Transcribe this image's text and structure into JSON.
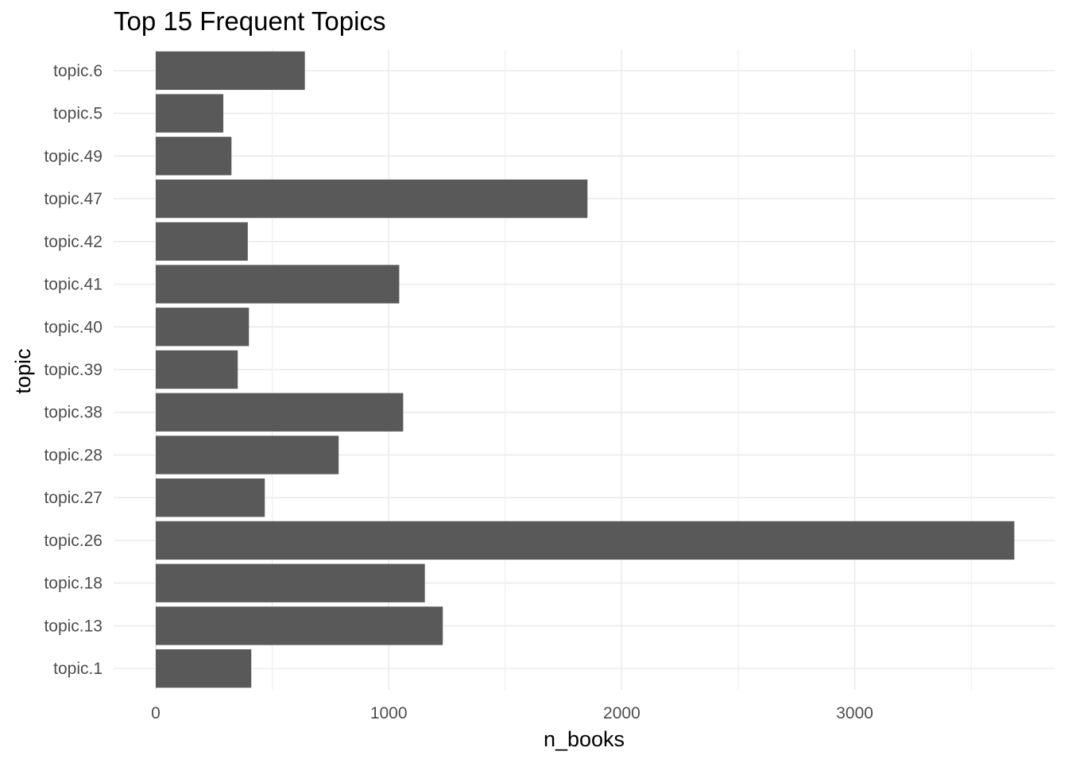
{
  "chart_data": {
    "type": "bar",
    "orientation": "horizontal",
    "title": "Top 15 Frequent Topics",
    "xlabel": "n_books",
    "ylabel": "topic",
    "categories": [
      "topic.1",
      "topic.13",
      "topic.18",
      "topic.26",
      "topic.27",
      "topic.28",
      "topic.38",
      "topic.39",
      "topic.40",
      "topic.41",
      "topic.42",
      "topic.47",
      "topic.49",
      "topic.5",
      "topic.6"
    ],
    "values": [
      410,
      1232,
      1155,
      3685,
      468,
      785,
      1062,
      352,
      400,
      1045,
      395,
      1853,
      325,
      290,
      640
    ],
    "xlim": [
      -100,
      3790
    ],
    "xticks": [
      0,
      1000,
      2000,
      3000
    ],
    "xtick_labels": [
      "0",
      "1000",
      "2000",
      "3000"
    ],
    "grid": true,
    "bar_color": "#595959",
    "grid_color": "#ebebeb"
  }
}
